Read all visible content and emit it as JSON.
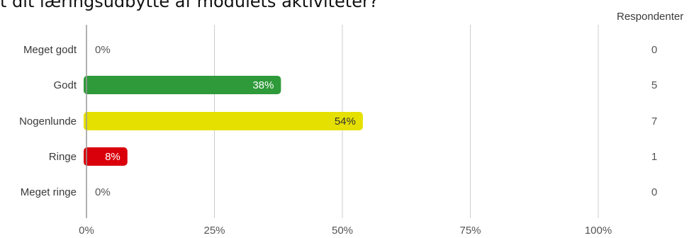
{
  "page": {
    "title": "t dit læringsudbytte af modulets aktiviteter?"
  },
  "chart_data": {
    "type": "bar",
    "orientation": "horizontal",
    "title": "t dit læringsudbytte af modulets aktiviteter?",
    "categories": [
      "Meget godt",
      "Godt",
      "Nogenlunde",
      "Ringe",
      "Meget ringe"
    ],
    "values": [
      0,
      38,
      54,
      8,
      0
    ],
    "value_labels": [
      "0%",
      "38%",
      "54%",
      "8%",
      "0%"
    ],
    "bar_colors": [
      "#2e9a3a",
      "#2e9a3a",
      "#e6e000",
      "#d9000c",
      "#999999"
    ],
    "label_colors": [
      "#555555",
      "#ffffff",
      "#333333",
      "#ffffff",
      "#555555"
    ],
    "respondents_header": "Respondenter",
    "respondents": [
      "0",
      "5",
      "7",
      "1",
      "0"
    ],
    "x_ticks": [
      0,
      25,
      50,
      75,
      100
    ],
    "x_tick_labels": [
      "0%",
      "25%",
      "50%",
      "75%",
      "100%"
    ],
    "xlim": [
      0,
      100
    ],
    "grid": true,
    "grid_color": "#cccccc"
  }
}
